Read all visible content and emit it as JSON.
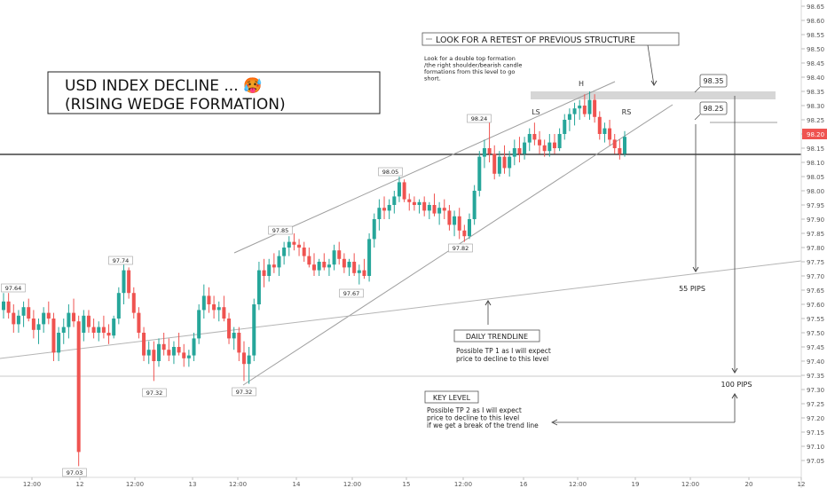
{
  "chart_data": {
    "type": "candlestick",
    "title": "USD INDEX DECLINE ... 🥵\n(RISING WEDGE FORMATION)",
    "y_axis": {
      "ticks": [
        "98.65",
        "98.60",
        "98.55",
        "98.50",
        "98.45",
        "98.40",
        "98.35",
        "98.30",
        "98.25",
        "98.20",
        "98.15",
        "98.10",
        "98.05",
        "98.00",
        "97.95",
        "97.90",
        "97.85",
        "97.80",
        "97.75",
        "97.70",
        "97.65",
        "97.60",
        "97.55",
        "97.50",
        "97.45",
        "97.40",
        "97.35",
        "97.30",
        "97.25",
        "97.20",
        "97.15",
        "97.10",
        "97.05"
      ],
      "ylim": [
        97.0,
        98.67
      ],
      "current_price": "98.20",
      "current_price_color": "#ef5350"
    },
    "x_axis": {
      "ticks": [
        "12:00",
        "12",
        "12:00",
        "13",
        "12:00",
        "14",
        "12:00",
        "15",
        "12:00",
        "16",
        "12:00",
        "19",
        "12:00",
        "20",
        "12"
      ]
    },
    "up_color": "#26a69a",
    "down_color": "#ef5350",
    "candles_approx": [
      [
        97.58,
        97.64,
        97.55,
        97.61
      ],
      [
        97.61,
        97.64,
        97.55,
        97.57
      ],
      [
        97.57,
        97.6,
        97.5,
        97.53
      ],
      [
        97.53,
        97.58,
        97.5,
        97.56
      ],
      [
        97.56,
        97.61,
        97.52,
        97.59
      ],
      [
        97.59,
        97.62,
        97.54,
        97.55
      ],
      [
        97.55,
        97.58,
        97.48,
        97.51
      ],
      [
        97.51,
        97.55,
        97.46,
        97.53
      ],
      [
        97.53,
        97.59,
        97.5,
        97.57
      ],
      [
        97.57,
        97.61,
        97.53,
        97.55
      ],
      [
        97.55,
        97.57,
        97.4,
        97.43
      ],
      [
        97.43,
        97.52,
        97.4,
        97.5
      ],
      [
        97.5,
        97.55,
        97.46,
        97.52
      ],
      [
        97.52,
        97.6,
        97.48,
        97.57
      ],
      [
        97.57,
        97.62,
        97.52,
        97.54
      ],
      [
        97.54,
        97.56,
        97.03,
        97.08
      ],
      [
        97.5,
        97.58,
        97.47,
        97.56
      ],
      [
        97.56,
        97.58,
        97.5,
        97.52
      ],
      [
        97.52,
        97.55,
        97.48,
        97.5
      ],
      [
        97.5,
        97.54,
        97.47,
        97.52
      ],
      [
        97.52,
        97.56,
        97.48,
        97.5
      ],
      [
        97.5,
        97.53,
        97.46,
        97.49
      ],
      [
        97.49,
        97.56,
        97.48,
        97.55
      ],
      [
        97.55,
        97.66,
        97.53,
        97.64
      ],
      [
        97.64,
        97.74,
        97.6,
        97.72
      ],
      [
        97.72,
        97.73,
        97.62,
        97.64
      ],
      [
        97.64,
        97.66,
        97.55,
        97.57
      ],
      [
        97.57,
        97.59,
        97.48,
        97.5
      ],
      [
        97.5,
        97.52,
        97.4,
        97.42
      ],
      [
        97.42,
        97.47,
        97.39,
        97.44
      ],
      [
        97.44,
        97.47,
        97.33,
        97.4
      ],
      [
        97.4,
        97.48,
        97.38,
        97.46
      ],
      [
        97.46,
        97.5,
        97.42,
        97.44
      ],
      [
        97.44,
        97.48,
        97.4,
        97.42
      ],
      [
        97.42,
        97.47,
        97.39,
        97.45
      ],
      [
        97.45,
        97.5,
        97.42,
        97.43
      ],
      [
        97.43,
        97.46,
        97.38,
        97.41
      ],
      [
        97.41,
        97.44,
        97.38,
        97.42
      ],
      [
        97.42,
        97.5,
        97.4,
        97.48
      ],
      [
        97.48,
        97.6,
        97.46,
        97.58
      ],
      [
        97.58,
        97.67,
        97.55,
        97.63
      ],
      [
        97.63,
        97.66,
        97.57,
        97.6
      ],
      [
        97.6,
        97.63,
        97.55,
        97.58
      ],
      [
        97.58,
        97.61,
        97.54,
        97.59
      ],
      [
        97.59,
        97.63,
        97.54,
        97.55
      ],
      [
        97.55,
        97.57,
        97.46,
        97.48
      ],
      [
        97.48,
        97.52,
        97.44,
        97.5
      ],
      [
        97.5,
        97.52,
        97.4,
        97.43
      ],
      [
        97.43,
        97.47,
        97.33,
        97.39
      ],
      [
        97.39,
        97.45,
        97.32,
        97.42
      ],
      [
        97.42,
        97.62,
        97.4,
        97.6
      ],
      [
        97.6,
        97.75,
        97.58,
        97.72
      ],
      [
        97.72,
        97.76,
        97.66,
        97.7
      ],
      [
        97.7,
        97.76,
        97.68,
        97.74
      ],
      [
        97.74,
        97.78,
        97.71,
        97.73
      ],
      [
        97.73,
        97.79,
        97.7,
        97.77
      ],
      [
        97.77,
        97.82,
        97.74,
        97.8
      ],
      [
        97.8,
        97.84,
        97.77,
        97.82
      ],
      [
        97.82,
        97.85,
        97.79,
        97.81
      ],
      [
        97.81,
        97.83,
        97.77,
        97.8
      ],
      [
        97.8,
        97.82,
        97.75,
        97.77
      ],
      [
        97.77,
        97.8,
        97.73,
        97.74
      ],
      [
        97.74,
        97.78,
        97.7,
        97.72
      ],
      [
        97.72,
        97.76,
        97.7,
        97.75
      ],
      [
        97.75,
        97.78,
        97.72,
        97.73
      ],
      [
        97.73,
        97.76,
        97.7,
        97.74
      ],
      [
        97.74,
        97.81,
        97.72,
        97.79
      ],
      [
        97.79,
        97.82,
        97.74,
        97.76
      ],
      [
        97.76,
        97.78,
        97.71,
        97.73
      ],
      [
        97.73,
        97.76,
        97.7,
        97.75
      ],
      [
        97.75,
        97.78,
        97.7,
        97.71
      ],
      [
        97.71,
        97.74,
        97.67,
        97.72
      ],
      [
        97.72,
        97.76,
        97.69,
        97.7
      ],
      [
        97.7,
        97.85,
        97.68,
        97.83
      ],
      [
        97.83,
        97.92,
        97.8,
        97.9
      ],
      [
        97.9,
        97.97,
        97.86,
        97.94
      ],
      [
        97.94,
        97.98,
        97.9,
        97.93
      ],
      [
        97.93,
        97.97,
        97.9,
        97.95
      ],
      [
        97.95,
        98.0,
        97.92,
        97.98
      ],
      [
        97.98,
        98.05,
        97.96,
        98.03
      ],
      [
        98.03,
        98.04,
        97.96,
        97.97
      ],
      [
        97.97,
        97.99,
        97.93,
        97.96
      ],
      [
        97.96,
        97.98,
        97.93,
        97.95
      ],
      [
        97.95,
        97.97,
        97.92,
        97.96
      ],
      [
        97.96,
        97.98,
        97.91,
        97.93
      ],
      [
        97.93,
        97.96,
        97.9,
        97.95
      ],
      [
        97.95,
        97.99,
        97.91,
        97.92
      ],
      [
        97.92,
        97.96,
        97.88,
        97.94
      ],
      [
        97.94,
        97.97,
        97.9,
        97.93
      ],
      [
        97.93,
        97.95,
        97.86,
        97.88
      ],
      [
        97.88,
        97.93,
        97.84,
        97.91
      ],
      [
        97.91,
        97.94,
        97.83,
        97.86
      ],
      [
        97.86,
        97.88,
        97.82,
        97.84
      ],
      [
        97.84,
        97.92,
        97.83,
        97.9
      ],
      [
        97.9,
        98.02,
        97.88,
        98.0
      ],
      [
        98.0,
        98.14,
        97.98,
        98.12
      ],
      [
        98.12,
        98.18,
        98.08,
        98.15
      ],
      [
        98.15,
        98.24,
        98.1,
        98.13
      ],
      [
        98.13,
        98.16,
        98.04,
        98.06
      ],
      [
        98.06,
        98.14,
        98.05,
        98.12
      ],
      [
        98.12,
        98.16,
        98.06,
        98.08
      ],
      [
        98.08,
        98.14,
        98.05,
        98.12
      ],
      [
        98.12,
        98.18,
        98.09,
        98.15
      ],
      [
        98.15,
        98.19,
        98.1,
        98.13
      ],
      [
        98.13,
        98.19,
        98.11,
        98.17
      ],
      [
        98.17,
        98.22,
        98.14,
        98.2
      ],
      [
        98.2,
        98.24,
        98.16,
        98.18
      ],
      [
        98.18,
        98.21,
        98.13,
        98.16
      ],
      [
        98.16,
        98.18,
        98.12,
        98.14
      ],
      [
        98.14,
        98.2,
        98.12,
        98.17
      ],
      [
        98.17,
        98.2,
        98.13,
        98.15
      ],
      [
        98.15,
        98.22,
        98.14,
        98.2
      ],
      [
        98.2,
        98.27,
        98.18,
        98.25
      ],
      [
        98.25,
        98.29,
        98.21,
        98.27
      ],
      [
        98.27,
        98.31,
        98.23,
        98.29
      ],
      [
        98.29,
        98.32,
        98.25,
        98.3
      ],
      [
        98.3,
        98.34,
        98.26,
        98.27
      ],
      [
        98.27,
        98.35,
        98.25,
        98.32
      ],
      [
        98.32,
        98.34,
        98.24,
        98.26
      ],
      [
        98.26,
        98.28,
        98.18,
        98.2
      ],
      [
        98.2,
        98.24,
        98.17,
        98.22
      ],
      [
        98.22,
        98.25,
        98.16,
        98.18
      ],
      [
        98.18,
        98.2,
        98.13,
        98.15
      ],
      [
        98.15,
        98.18,
        98.11,
        98.13
      ],
      [
        98.13,
        98.21,
        98.12,
        98.19
      ]
    ],
    "annotations": [
      {
        "kind": "label",
        "text": "97.64"
      },
      {
        "kind": "label",
        "text": "97.74"
      },
      {
        "kind": "label",
        "text": "97.03"
      },
      {
        "kind": "label",
        "text": "97.32"
      },
      {
        "kind": "label",
        "text": "97.32"
      },
      {
        "kind": "label",
        "text": "97.85"
      },
      {
        "kind": "label",
        "text": "97.67"
      },
      {
        "kind": "label",
        "text": "98.05"
      },
      {
        "kind": "label",
        "text": "97.82"
      },
      {
        "kind": "label",
        "text": "98.24"
      },
      {
        "kind": "text",
        "text": "LS"
      },
      {
        "kind": "text",
        "text": "H"
      },
      {
        "kind": "text",
        "text": "RS"
      },
      {
        "kind": "box",
        "text": "98.35"
      },
      {
        "kind": "box",
        "text": "98.25"
      },
      {
        "kind": "box",
        "text": "LOOK FOR A RETEST OF PREVIOUS STRUCTURE"
      },
      {
        "kind": "note",
        "text": "Look for a double top formation\n/the right shoulder/bearish candle\nformations from this level to go\nshort."
      },
      {
        "kind": "box",
        "text": "DAILY TRENDLINE"
      },
      {
        "kind": "note",
        "text": "Possible TP 1 as I will expect\nprice to decline to this level"
      },
      {
        "kind": "box",
        "text": "KEY LEVEL"
      },
      {
        "kind": "note",
        "text": "Possible TP 2 as I will expect\nprice to decline to this level\nif we get a break of the trend line"
      },
      {
        "kind": "text",
        "text": "55 PIPS"
      },
      {
        "kind": "text",
        "text": "100 PIPS"
      }
    ]
  }
}
